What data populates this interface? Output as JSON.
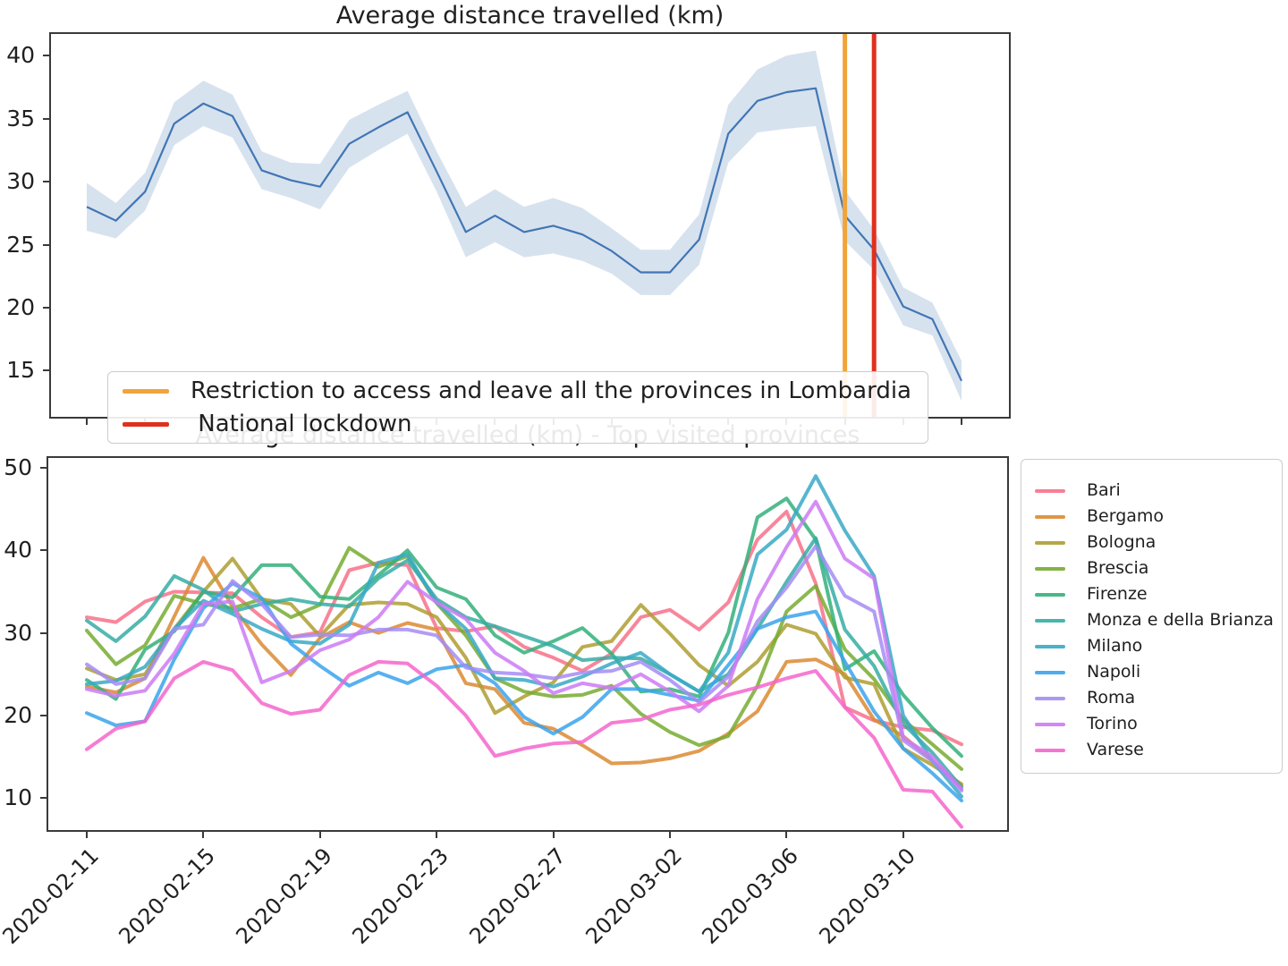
{
  "dates": [
    "2020-02-11",
    "2020-02-12",
    "2020-02-13",
    "2020-02-14",
    "2020-02-15",
    "2020-02-16",
    "2020-02-17",
    "2020-02-18",
    "2020-02-19",
    "2020-02-20",
    "2020-02-21",
    "2020-02-22",
    "2020-02-23",
    "2020-02-24",
    "2020-02-25",
    "2020-02-26",
    "2020-02-27",
    "2020-02-28",
    "2020-02-29",
    "2020-03-01",
    "2020-03-02",
    "2020-03-03",
    "2020-03-04",
    "2020-03-05",
    "2020-03-06",
    "2020-03-07",
    "2020-03-08",
    "2020-03-09",
    "2020-03-10",
    "2020-03-11",
    "2020-03-12"
  ],
  "x_tick_labels": [
    "2020-02-11",
    "2020-02-15",
    "2020-02-19",
    "2020-02-23",
    "2020-02-27",
    "2020-03-02",
    "2020-03-06",
    "2020-03-10"
  ],
  "x_tick_day_indices": [
    0,
    4,
    8,
    12,
    16,
    20,
    24,
    28
  ],
  "chart_data": [
    {
      "type": "line",
      "title": "Average distance travelled (km)",
      "xlabel": "",
      "ylabel": "",
      "grid": false,
      "legend_position": "lower left",
      "yticks": [
        15,
        20,
        25,
        30,
        35,
        40
      ],
      "ylim": [
        11.2,
        41.85
      ],
      "xlim_days": [
        -1.29,
        31.69
      ],
      "x_minor_tick_step_days": 2,
      "line_color": "#4176b4",
      "band_color": "#4a7ab5",
      "band_opacity": 0.22,
      "values": [
        28.0,
        26.9,
        29.2,
        34.6,
        36.2,
        35.2,
        30.9,
        30.1,
        29.6,
        33.0,
        34.3,
        35.5,
        30.8,
        26.0,
        27.3,
        26.0,
        26.5,
        25.8,
        24.5,
        22.8,
        22.8,
        25.4,
        33.8,
        36.4,
        37.1,
        37.4,
        27.3,
        24.6,
        20.1,
        19.1,
        14.2
      ],
      "band": {
        "lower": [
          26.1,
          25.5,
          27.7,
          32.9,
          34.4,
          33.5,
          29.4,
          28.7,
          27.8,
          31.1,
          32.5,
          33.8,
          29.2,
          24.0,
          25.2,
          24.0,
          24.3,
          23.7,
          22.7,
          21.0,
          21.0,
          23.4,
          31.5,
          33.9,
          34.2,
          34.4,
          25.3,
          23.0,
          18.6,
          17.8,
          12.6
        ],
        "upper": [
          29.9,
          28.3,
          30.7,
          36.3,
          38.0,
          36.9,
          32.4,
          31.5,
          31.4,
          34.9,
          36.1,
          37.2,
          32.4,
          28.0,
          29.4,
          28.0,
          28.7,
          27.9,
          26.3,
          24.6,
          24.6,
          27.4,
          36.1,
          38.9,
          40.0,
          40.4,
          29.3,
          26.2,
          21.6,
          20.4,
          15.8
        ]
      },
      "events": [
        {
          "label": "Restriction to access and leave all the provinces in Lombardia",
          "date": "2020-03-08",
          "day_index": 26,
          "color": "#f0a53b"
        },
        {
          "label": " National lockdown",
          "date": "2020-03-09",
          "day_index": 27,
          "color": "#e0301e"
        }
      ]
    },
    {
      "type": "line",
      "title": "Average distance travelled (km) - Top visited provinces",
      "xlabel": "",
      "ylabel": "",
      "grid": false,
      "legend_position": "right",
      "yticks": [
        10,
        20,
        30,
        40,
        50
      ],
      "ylim": [
        5.9,
        51.4
      ],
      "xlim_days": [
        -1.38,
        31.62
      ],
      "series": [
        {
          "name": "Bari",
          "color": "#f77189",
          "values": [
            31.9,
            31.3,
            33.8,
            35.0,
            34.9,
            34.8,
            31.9,
            29.5,
            30.1,
            37.6,
            38.5,
            38.2,
            30.6,
            30.2,
            30.8,
            28.3,
            27.0,
            25.4,
            27.5,
            31.9,
            32.8,
            30.4,
            33.7,
            41.3,
            44.7,
            36.0,
            21.0,
            19.4,
            18.6,
            18.2,
            16.5
          ]
        },
        {
          "name": "Bergamo",
          "color": "#dc8932",
          "values": [
            23.5,
            22.8,
            24.5,
            32.0,
            39.1,
            33.2,
            28.6,
            24.9,
            29.4,
            31.3,
            30.0,
            31.2,
            30.4,
            23.9,
            23.2,
            19.1,
            18.4,
            16.4,
            14.2,
            14.3,
            14.8,
            15.7,
            17.8,
            20.5,
            26.5,
            26.8,
            25.0,
            19.5,
            17.5,
            14.5,
            11.5
          ]
        },
        {
          "name": "Bologna",
          "color": "#ae9d31",
          "values": [
            25.7,
            24.3,
            25.0,
            30.5,
            35.0,
            39.0,
            34.1,
            33.5,
            29.6,
            33.4,
            33.7,
            33.5,
            31.9,
            27.0,
            20.3,
            22.3,
            24.0,
            28.3,
            29.0,
            33.4,
            29.9,
            26.1,
            23.6,
            26.5,
            31.0,
            29.9,
            24.6,
            23.8,
            16.0,
            14.0,
            11.7
          ]
        },
        {
          "name": "Brescia",
          "color": "#77ab31",
          "values": [
            30.3,
            26.2,
            28.5,
            34.5,
            33.5,
            33.0,
            34.1,
            31.9,
            33.4,
            40.3,
            38.0,
            39.3,
            33.6,
            29.7,
            24.5,
            22.9,
            22.3,
            22.5,
            23.6,
            20.2,
            18.0,
            16.4,
            17.5,
            23.6,
            32.6,
            35.7,
            28.0,
            24.4,
            19.5,
            16.5,
            13.5
          ]
        },
        {
          "name": "Firenze",
          "color": "#33b07a",
          "values": [
            24.3,
            22.0,
            28.0,
            30.2,
            35.0,
            34.3,
            38.2,
            38.2,
            34.4,
            34.1,
            37.0,
            40.0,
            35.5,
            34.1,
            29.7,
            27.6,
            29.0,
            30.6,
            27.5,
            22.9,
            23.2,
            22.3,
            30.0,
            44.0,
            46.3,
            41.3,
            25.6,
            27.8,
            22.5,
            18.5,
            15.1
          ]
        },
        {
          "name": "Monza e della Brianza",
          "color": "#36ada4",
          "values": [
            31.5,
            29.0,
            32.0,
            36.9,
            35.2,
            32.6,
            33.5,
            34.1,
            33.5,
            33.2,
            36.6,
            38.8,
            34.1,
            31.9,
            30.8,
            29.6,
            28.4,
            26.7,
            27.0,
            26.9,
            25.0,
            22.9,
            25.0,
            30.5,
            36.2,
            41.5,
            30.4,
            26.0,
            19.0,
            15.5,
            11.3
          ]
        },
        {
          "name": "Milano",
          "color": "#38a9c5",
          "values": [
            23.8,
            24.2,
            25.9,
            30.5,
            33.9,
            32.3,
            30.5,
            29.0,
            28.7,
            31.0,
            38.5,
            39.5,
            33.7,
            30.5,
            24.5,
            24.3,
            23.5,
            24.7,
            26.3,
            27.6,
            25.0,
            22.9,
            27.6,
            39.5,
            42.5,
            49.0,
            42.4,
            36.9,
            20.0,
            14.5,
            10.2
          ]
        },
        {
          "name": "Napoli",
          "color": "#3ba3ec",
          "values": [
            20.3,
            18.8,
            19.3,
            26.8,
            33.0,
            36.0,
            34.2,
            28.7,
            26.0,
            23.6,
            25.2,
            23.9,
            25.6,
            26.1,
            23.9,
            19.8,
            17.8,
            19.8,
            23.2,
            23.2,
            22.5,
            21.8,
            26.1,
            30.5,
            31.9,
            32.6,
            26.5,
            20.5,
            16.0,
            13.0,
            9.7
          ]
        },
        {
          "name": "Roma",
          "color": "#a48cf4",
          "values": [
            26.2,
            23.8,
            24.5,
            30.5,
            31.0,
            36.3,
            33.5,
            29.5,
            29.8,
            29.7,
            30.4,
            30.4,
            29.7,
            25.8,
            25.2,
            25.0,
            24.5,
            25.2,
            25.4,
            26.5,
            24.3,
            21.6,
            24.7,
            31.4,
            35.5,
            40.5,
            34.5,
            32.6,
            17.0,
            14.5,
            10.9
          ]
        },
        {
          "name": "Torino",
          "color": "#cc7af4",
          "values": [
            23.2,
            22.4,
            23.0,
            27.5,
            33.5,
            33.8,
            24.0,
            25.4,
            27.9,
            29.2,
            31.9,
            36.2,
            33.7,
            31.7,
            27.6,
            25.4,
            22.7,
            23.9,
            23.3,
            25.0,
            22.9,
            20.5,
            23.6,
            34.1,
            40.4,
            45.9,
            39.0,
            36.6,
            17.3,
            15.0,
            11.1
          ]
        },
        {
          "name": "Varese",
          "color": "#f565cc",
          "values": [
            15.9,
            18.4,
            19.3,
            24.5,
            26.5,
            25.5,
            21.5,
            20.2,
            20.7,
            24.9,
            26.5,
            26.3,
            23.6,
            20.0,
            15.1,
            16.0,
            16.6,
            16.8,
            19.1,
            19.5,
            20.7,
            21.3,
            22.5,
            23.4,
            24.5,
            25.4,
            21.0,
            17.3,
            11.0,
            10.8,
            6.5
          ]
        }
      ]
    }
  ]
}
